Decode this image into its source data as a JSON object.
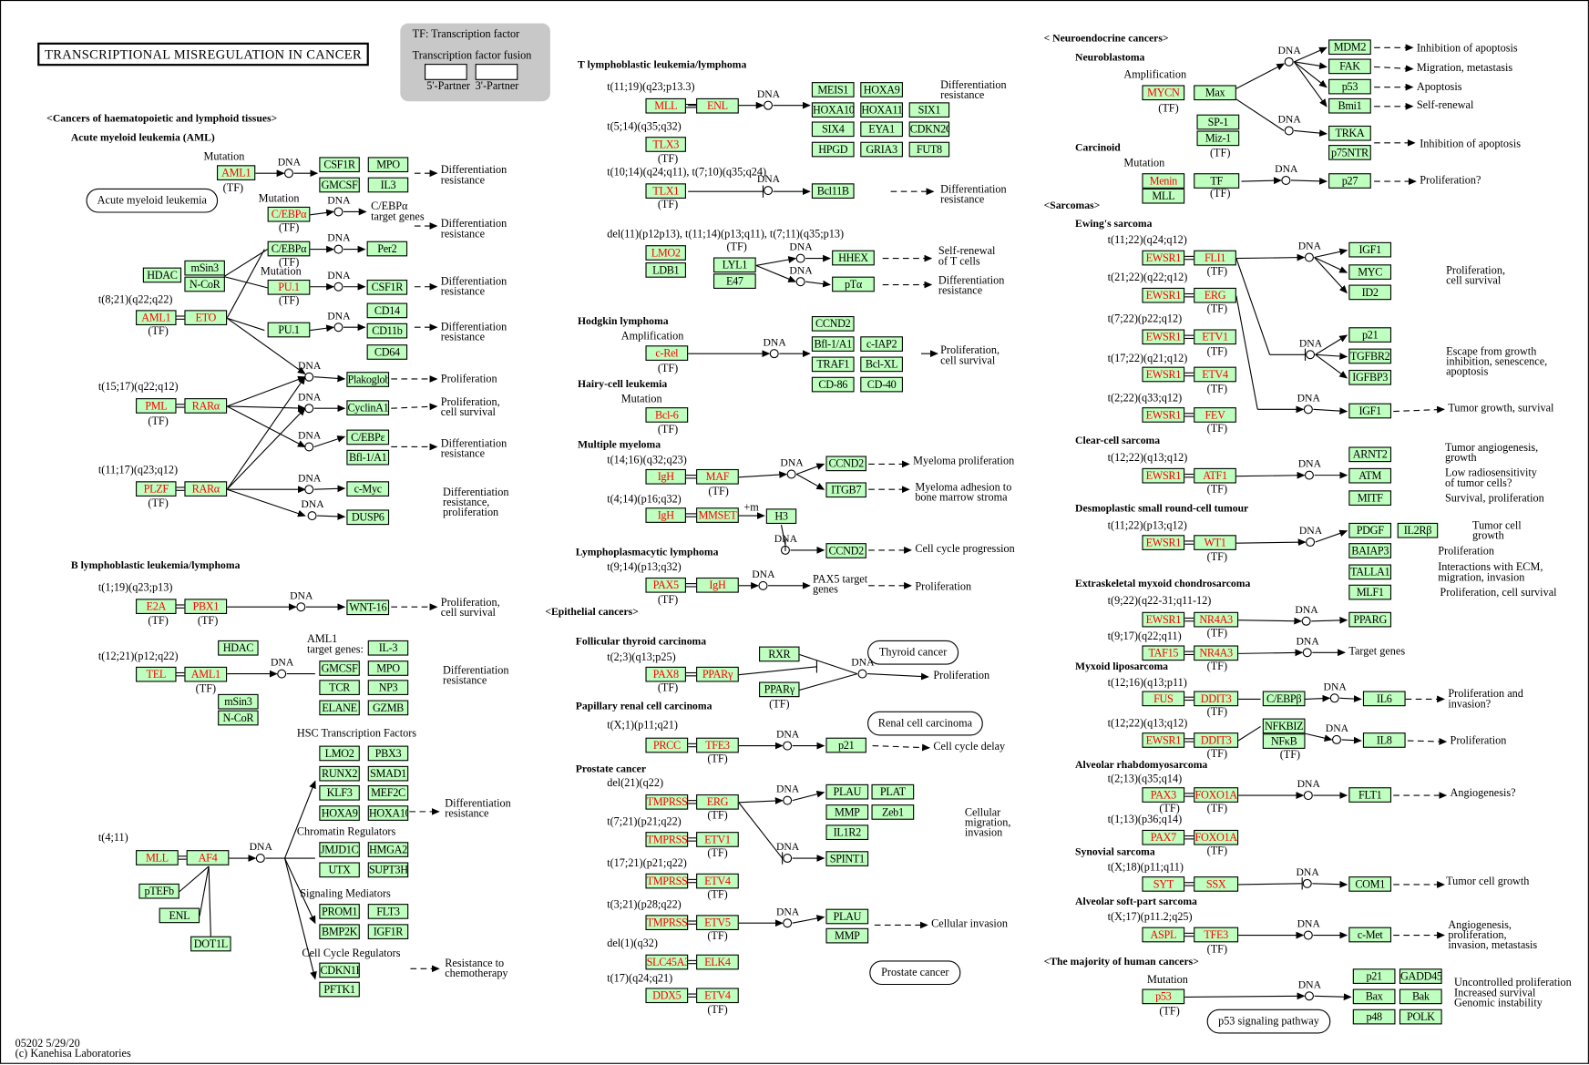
{
  "title": "TRANSCRIPTIONAL MISREGULATION  IN  CANCER",
  "legend": {
    "tf": "TF: Transcription factor",
    "fusion": "Transcription factor fusion",
    "p5": "5'-Partner",
    "p3": "3'-Partner"
  },
  "colors": {
    "gene_fill": "#bfffbf",
    "mutated_text": "#ff0000",
    "legend_bg": "#c8c8c8"
  },
  "dna_label": "DNA",
  "ovals": [
    "Acute myeloid leukemia",
    "Thyroid cancer",
    "Renal cell carcinoma",
    "Prostate cancer",
    "p53 signaling pathway"
  ],
  "nodes": {
    "aml": [
      {
        "t": "AML1",
        "m": true
      },
      {
        "t": "CSF1R"
      },
      {
        "t": "MPO"
      },
      {
        "t": "GMCSF"
      },
      {
        "t": "IL3"
      },
      {
        "t": "C/EBPα",
        "m": true
      },
      {
        "t": "C/EBPα"
      },
      {
        "t": "Per2"
      },
      {
        "t": "HDAC"
      },
      {
        "t": "mSin3"
      },
      {
        "t": "N-CoR"
      },
      {
        "t": "PU.1",
        "m": true
      },
      {
        "t": "CSF1R"
      },
      {
        "t": "AML1",
        "m": true
      },
      {
        "t": "ETO",
        "m": true
      },
      {
        "t": "CD14"
      },
      {
        "t": "PU.1"
      },
      {
        "t": "CD11b"
      },
      {
        "t": "CD64"
      },
      {
        "t": "Plakoglobin"
      },
      {
        "t": "CyclinA1"
      },
      {
        "t": "C/EBPε"
      },
      {
        "t": "Bfl-1/A1"
      },
      {
        "t": "c-Myc"
      },
      {
        "t": "DUSP6"
      },
      {
        "t": "PML",
        "m": true
      },
      {
        "t": "RARα",
        "m": true
      },
      {
        "t": "PLZF",
        "m": true
      },
      {
        "t": "RARα",
        "m": true
      }
    ],
    "b": [
      {
        "t": "E2A",
        "m": true
      },
      {
        "t": "PBX1",
        "m": true
      },
      {
        "t": "WNT-16"
      },
      {
        "t": "HDAC"
      },
      {
        "t": "TEL",
        "m": true
      },
      {
        "t": "AML1",
        "m": true
      },
      {
        "t": "IL-3"
      },
      {
        "t": "GMCSF"
      },
      {
        "t": "MPO"
      },
      {
        "t": "TCR"
      },
      {
        "t": "NP3"
      },
      {
        "t": "ELANE"
      },
      {
        "t": "GZMB"
      },
      {
        "t": "mSin3"
      },
      {
        "t": "N-CoR"
      },
      {
        "t": "LMO2"
      },
      {
        "t": "PBX3"
      },
      {
        "t": "RUNX2"
      },
      {
        "t": "SMAD1"
      },
      {
        "t": "KLF3"
      },
      {
        "t": "MEF2C"
      },
      {
        "t": "HOXA9"
      },
      {
        "t": "HOXA10"
      },
      {
        "t": "JMJD1C"
      },
      {
        "t": "HMGA2"
      },
      {
        "t": "UTX"
      },
      {
        "t": "SUPT3H"
      },
      {
        "t": "PROM1"
      },
      {
        "t": "FLT3"
      },
      {
        "t": "BMP2K"
      },
      {
        "t": "IGF1R"
      },
      {
        "t": "CDKN1B"
      },
      {
        "t": "PFTK1"
      },
      {
        "t": "MLL",
        "m": true
      },
      {
        "t": "AF4",
        "m": true
      },
      {
        "t": "pTEFb"
      },
      {
        "t": "ENL"
      },
      {
        "t": "DOT1L"
      }
    ],
    "t": [
      {
        "t": "MLL",
        "m": true
      },
      {
        "t": "ENL",
        "m": true
      },
      {
        "t": "MEIS1"
      },
      {
        "t": "HOXA9"
      },
      {
        "t": "HOXA10"
      },
      {
        "t": "HOXA11"
      },
      {
        "t": "SIX1"
      },
      {
        "t": "SIX4"
      },
      {
        "t": "EYA1"
      },
      {
        "t": "CDKN2C"
      },
      {
        "t": "HPGD"
      },
      {
        "t": "GRIA3"
      },
      {
        "t": "FUT8"
      },
      {
        "t": "TLX3",
        "m": true
      },
      {
        "t": "TLX1",
        "m": true
      },
      {
        "t": "Bcl11B"
      },
      {
        "t": "LMO2",
        "m": true
      },
      {
        "t": "LDB1"
      },
      {
        "t": "LYL1"
      },
      {
        "t": "E47"
      },
      {
        "t": "HHEX"
      },
      {
        "t": "pTα"
      },
      {
        "t": "c-Rel",
        "m": true
      },
      {
        "t": "CCND2"
      },
      {
        "t": "Bfl-1/A1"
      },
      {
        "t": "c-IAP2"
      },
      {
        "t": "TRAF1"
      },
      {
        "t": "Bcl-XL"
      },
      {
        "t": "CD-86"
      },
      {
        "t": "CD-40"
      },
      {
        "t": "Bcl-6",
        "m": true
      },
      {
        "t": "IgH",
        "m": true
      },
      {
        "t": "MAF",
        "m": true
      },
      {
        "t": "CCND2"
      },
      {
        "t": "ITGB7"
      },
      {
        "t": "IgH",
        "m": true
      },
      {
        "t": "MMSET",
        "m": true
      },
      {
        "t": "H3"
      },
      {
        "t": "CCND2"
      },
      {
        "t": "PAX5",
        "m": true
      },
      {
        "t": "IgH",
        "m": true
      }
    ],
    "epi": [
      {
        "t": "RXR"
      },
      {
        "t": "PAX8",
        "m": true
      },
      {
        "t": "PPARγ",
        "m": true
      },
      {
        "t": "PPARγ"
      },
      {
        "t": "PRCC",
        "m": true
      },
      {
        "t": "TFE3",
        "m": true
      },
      {
        "t": "p21"
      },
      {
        "t": "TMPRSS2",
        "m": true
      },
      {
        "t": "ERG",
        "m": true
      },
      {
        "t": "PLAU"
      },
      {
        "t": "PLAT"
      },
      {
        "t": "MMP"
      },
      {
        "t": "Zeb1"
      },
      {
        "t": "IL1R2"
      },
      {
        "t": "SPINT1"
      },
      {
        "t": "TMPRSS2",
        "m": true
      },
      {
        "t": "ETV1",
        "m": true
      },
      {
        "t": "TMPRSS2",
        "m": true
      },
      {
        "t": "ETV4",
        "m": true
      },
      {
        "t": "TMPRSS2",
        "m": true
      },
      {
        "t": "ETV5",
        "m": true
      },
      {
        "t": "PLAU"
      },
      {
        "t": "MMP"
      },
      {
        "t": "SLC45A3",
        "m": true
      },
      {
        "t": "ELK4",
        "m": true
      },
      {
        "t": "DDX5",
        "m": true
      },
      {
        "t": "ETV4",
        "m": true
      }
    ],
    "r": [
      {
        "t": "MDM2"
      },
      {
        "t": "FAK"
      },
      {
        "t": "p53"
      },
      {
        "t": "Bmi1"
      },
      {
        "t": "MYCN",
        "m": true
      },
      {
        "t": "Max"
      },
      {
        "t": "SP-1"
      },
      {
        "t": "Miz-1"
      },
      {
        "t": "TRKA"
      },
      {
        "t": "p75NTR"
      },
      {
        "t": "Menin",
        "m": true
      },
      {
        "t": "MLL"
      },
      {
        "t": "TF"
      },
      {
        "t": "p27"
      },
      {
        "t": "EWSR1",
        "m": true
      },
      {
        "t": "FLI1",
        "m": true
      },
      {
        "t": "IGF1"
      },
      {
        "t": "MYC"
      },
      {
        "t": "ID2"
      },
      {
        "t": "EWSR1",
        "m": true
      },
      {
        "t": "ERG",
        "m": true
      },
      {
        "t": "EWSR1",
        "m": true
      },
      {
        "t": "ETV1",
        "m": true
      },
      {
        "t": "p21"
      },
      {
        "t": "TGFBR2"
      },
      {
        "t": "IGFBP3"
      },
      {
        "t": "EWSR1",
        "m": true
      },
      {
        "t": "ETV4",
        "m": true
      },
      {
        "t": "EWSR1",
        "m": true
      },
      {
        "t": "FEV",
        "m": true
      },
      {
        "t": "IGF1"
      },
      {
        "t": "ARNT2"
      },
      {
        "t": "ATM"
      },
      {
        "t": "MITF"
      },
      {
        "t": "EWSR1",
        "m": true
      },
      {
        "t": "ATF1",
        "m": true
      },
      {
        "t": "EWSR1",
        "m": true
      },
      {
        "t": "WT1",
        "m": true
      },
      {
        "t": "PDGF"
      },
      {
        "t": "IL2Rβ"
      },
      {
        "t": "BAIAP3"
      },
      {
        "t": "TALLA1"
      },
      {
        "t": "MLF1"
      },
      {
        "t": "EWSR1",
        "m": true
      },
      {
        "t": "NR4A3",
        "m": true
      },
      {
        "t": "PPARG"
      },
      {
        "t": "TAF15",
        "m": true
      },
      {
        "t": "NR4A3",
        "m": true
      },
      {
        "t": "FUS",
        "m": true
      },
      {
        "t": "DDIT3",
        "m": true
      },
      {
        "t": "C/EBPβ"
      },
      {
        "t": "IL6"
      },
      {
        "t": "EWSR1",
        "m": true
      },
      {
        "t": "DDIT3",
        "m": true
      },
      {
        "t": "NFKBIZ"
      },
      {
        "t": "NFκB"
      },
      {
        "t": "IL8"
      },
      {
        "t": "PAX3",
        "m": true
      },
      {
        "t": "FOXO1A",
        "m": true
      },
      {
        "t": "FLT1"
      },
      {
        "t": "PAX7",
        "m": true
      },
      {
        "t": "FOXO1A",
        "m": true
      },
      {
        "t": "SYT",
        "m": true
      },
      {
        "t": "SSX",
        "m": true
      },
      {
        "t": "COM1"
      },
      {
        "t": "ASPL",
        "m": true
      },
      {
        "t": "TFE3",
        "m": true
      },
      {
        "t": "c-Met"
      },
      {
        "t": "p53",
        "m": true
      },
      {
        "t": "p21"
      },
      {
        "t": "GADD45"
      },
      {
        "t": "Bax"
      },
      {
        "t": "Bak"
      },
      {
        "t": "p48"
      },
      {
        "t": "POLK"
      }
    ]
  },
  "labels": [
    "<Cancers of haematopoietic and lymphoid tissues>",
    "Acute myeloid leukemia (AML)",
    "Mutation",
    "(TF)",
    "Differentiation\nresistance",
    "Mutation",
    "(TF)",
    "C/EBPα\ntarget genes",
    "Differentiation\nresistance",
    "(TF)",
    "Mutation",
    "(TF)",
    "Differentiation\nresistance",
    "t(8;21)(q22;q22)",
    "(TF)",
    "Differentiation\nresistance",
    "Proliferation",
    "t(15;17)(q22;q12)",
    "(TF)",
    "Proliferation,\ncell survival",
    "Differentiation\nresistance",
    "t(11;17)(q23;q12)",
    "(TF)",
    "Differentiation\nresistance,\nproliferation",
    "B lymphoblastic leukemia/lymphoma",
    "t(1;19)(q23;p13)",
    "(TF)",
    "(TF)",
    "Proliferation,\ncell survival",
    "AML1\ntarget genes:",
    "t(12;21)(p12;q22)",
    "(TF)",
    "Differentiation\nresistance",
    "HSC Transcription Factors",
    "Differentiation\nresistance",
    "Chromatin Regulators",
    "t(4;11)",
    "Signaling Mediators",
    "Cell Cycle Regulators",
    "Resistance to\nchemotherapy",
    "T lymphoblastic leukemia/lymphoma",
    "t(11;19)(q23;p13.3)",
    "Differentiation\nresistance",
    "t(5;14)(q35;q32)",
    "(TF)",
    "t(10;14)(q24;q11), t(7;10)(q35;q24)",
    "(TF)",
    "Differentiation\nresistance",
    "del(11)(p12p13), t(11;14)(p13;q11), t(7;11)(q35;p13)",
    "(TF)",
    "Self-renewal\nof T cells",
    "Differentiation\nresistance",
    "Hodgkin lymphoma",
    "Amplification",
    "(TF)",
    "Proliferation,\ncell survival",
    "Hairy-cell leukemia",
    "Mutation",
    "(TF)",
    "Multiple myeloma",
    "t(14;16)(q32;q23)",
    "(TF)",
    "Myeloma proliferation",
    "Myeloma adhesion to\nbone marrow stroma",
    "t(4;14)(p16;q32)",
    "+m",
    "Lymphoplasmacytic lymphoma",
    "t(9;14)(p13;q32)",
    "(TF)",
    "Cell cycle progression",
    "PAX5 target\ngenes",
    "Proliferation",
    "<Epithelial cancers>",
    "Follicular thyroid carcinoma",
    "t(2;3)(q13;p25)",
    "(TF)",
    "(TF)",
    "Proliferation",
    "Papillary renal cell carcinoma",
    "t(X;1)(p11;q21)",
    "(TF)",
    "Cell cycle delay",
    "Prostate cancer",
    "del(21)(q22)",
    "(TF)",
    "t(7;21)(p21;q22)",
    "(TF)",
    "t(17;21)(p21;q22)",
    "(TF)",
    "Cellular\nmigration,\ninvasion",
    "t(3;21)(p28;q22)",
    "(TF)",
    "Cellular invasion",
    "del(1)(q32)",
    "t(17)(q24;q21)",
    "(TF)",
    "< Neuroendocrine cancers>",
    "Neuroblastoma",
    "Amplification",
    "(TF)",
    "Inhibition of apoptosis",
    "Migration, metastasis",
    "Apoptosis",
    "Self-renewal",
    "Inhibition of apoptosis",
    "(TF)",
    "Carcinoid",
    "Mutation",
    "(TF)",
    "Proliferation?",
    "<Sarcomas>",
    "Ewing's sarcoma",
    "t(11;22)(q24;q12)",
    "(TF)",
    "Proliferation,\ncell survival",
    "t(21;22)(q22;q12)",
    "(TF)",
    "t(7;22)(p22;q12)",
    "(TF)",
    "Escape from growth\ninhibition, senescence,\napoptosis",
    "t(17;22)(q21;q12)",
    "(TF)",
    "t(2;22)(q33;q12)",
    "(TF)",
    "Tumor growth, survival",
    "Clear-cell sarcoma",
    "t(12;22)(q13;q12)",
    "(TF)",
    "Tumor angiogenesis,\ngrowth",
    "Low radiosensitivity\nof tumor cells?",
    "Survival, proliferation",
    "Desmoplastic small round-cell tumour",
    "t(11;22)(p13;q12)",
    "(TF)",
    "Tumor cell\ngrowth",
    "Proliferation",
    "Interactions with ECM,\nmigration, invasion",
    "Proliferation, cell survival",
    "Extraskeletal myxoid chondrosarcoma",
    "t(9;22)(q22-31;q11-12)",
    "(TF)",
    "t(9;17)(q22;q11)",
    "Target genes",
    "(TF)",
    "Myxoid liposarcoma",
    "t(12;16)(q13;p11)",
    "(TF)",
    "Proliferation and\ninvasion?",
    "t(12;22)(q13;q12)",
    "(TF)",
    "(TF)",
    "Proliferation",
    "Alveolar rhabdomyosarcoma",
    "t(2;13)(q35;q14)",
    "(TF)",
    "(TF)",
    "Angiogenesis?",
    "t(1;13)(p36;q14)",
    "(TF)",
    "Synovial sarcoma",
    "t(X;18)(p11;q11)",
    "Tumor cell growth",
    "Alveolar soft-part sarcoma",
    "t(X;17)(p11.2;q25)",
    "(TF)",
    "Angiogenesis,\nproliferation,\ninvasion, metastasis",
    "<The majority of human cancers>",
    "Mutation",
    "(TF)",
    "Uncontrolled proliferation\nIncreased survival\nGenomic instability",
    "05202 5/29/20\n(c) Kanehisa Laboratories"
  ]
}
